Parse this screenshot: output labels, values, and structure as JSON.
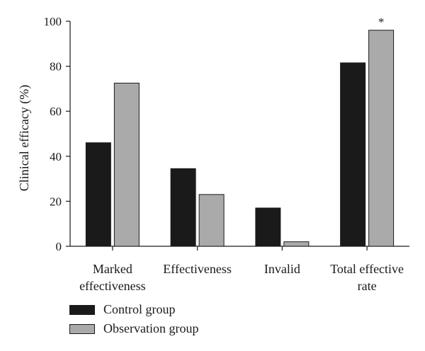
{
  "chart_data": {
    "type": "bar",
    "title": "",
    "xlabel": "",
    "ylabel": "Clinical efficacy (%)",
    "ylim": [
      0,
      100
    ],
    "yticks": [
      0,
      20,
      40,
      60,
      80,
      100
    ],
    "categories": [
      [
        "Marked",
        "effectiveness"
      ],
      [
        "Effectiveness"
      ],
      [
        "Invalid"
      ],
      [
        "Total effective",
        "rate"
      ]
    ],
    "series": [
      {
        "name": "Control group",
        "color": "#1a1a1a",
        "values": [
          46,
          34.5,
          17,
          81.5
        ]
      },
      {
        "name": "Observation group",
        "color": "#aaaaaa",
        "values": [
          72.5,
          23,
          2,
          96
        ]
      }
    ],
    "annotations": [
      {
        "text": "*",
        "category_index": 3,
        "series_index": 1
      }
    ],
    "legend_position": "bottom-left",
    "grid": false
  }
}
